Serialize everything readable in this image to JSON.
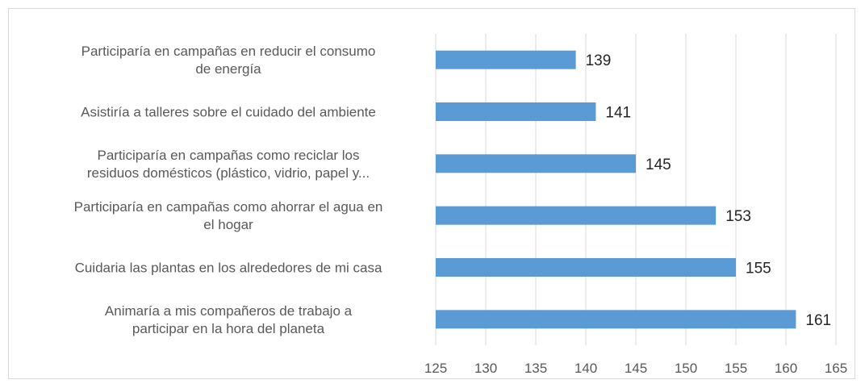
{
  "chart_data": {
    "type": "bar",
    "orientation": "horizontal",
    "title": "",
    "xlabel": "",
    "ylabel": "",
    "xlim": [
      125,
      165
    ],
    "x_ticks": [
      "125",
      "130",
      "135",
      "140",
      "145",
      "150",
      "155",
      "160",
      "165"
    ],
    "grid": true,
    "bar_color": "#5b9bd5",
    "data_labels": true,
    "categories": [
      [
        "Participaría en campañas en reducir el consumo",
        "de energía"
      ],
      [
        "Asistiría a talleres sobre el cuidado del ambiente"
      ],
      [
        "Participaría en campañas como reciclar los",
        "residuos domésticos (plástico, vidrio, papel y..."
      ],
      [
        "Participaría en campañas como ahorrar el agua en",
        "el hogar"
      ],
      [
        "Cuidaria las plantas en los alrededores de mi casa"
      ],
      [
        "Animaría a mis compañeros de trabajo a",
        "participar en la hora del planeta"
      ]
    ],
    "values": [
      139,
      141,
      145,
      153,
      155,
      161
    ]
  }
}
